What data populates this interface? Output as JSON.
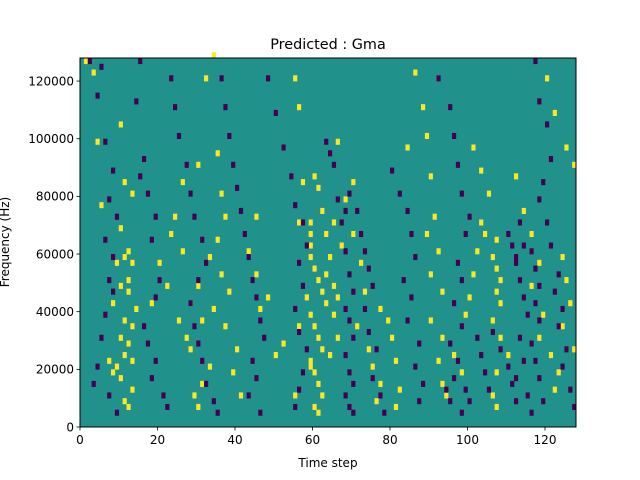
{
  "chart_data": {
    "type": "heatmap",
    "title": "Predicted : Gma",
    "xlabel": "Time step",
    "ylabel": "Frequency (Hz)",
    "xlim": [
      0,
      128
    ],
    "ylim": [
      0,
      128000
    ],
    "xticks": [
      0,
      20,
      40,
      60,
      80,
      100,
      120
    ],
    "yticks": [
      0,
      20000,
      40000,
      60000,
      80000,
      100000,
      120000
    ],
    "xtick_labels": [
      "0",
      "20",
      "40",
      "60",
      "80",
      "100",
      "120"
    ],
    "ytick_labels": [
      "0",
      "20000",
      "40000",
      "60000",
      "80000",
      "100000",
      "120000"
    ],
    "grid": false,
    "legend": "none",
    "colormap": "viridis (3 levels)",
    "colors": {
      "background": "#21918c",
      "low": "#440154",
      "high": "#fde725"
    },
    "background_level": "mid",
    "row_step_hz": 2000,
    "note_bins": "x = time step, y = frequency bin (Hz), level = low/high",
    "high_cells": [
      [
        1,
        126000
      ],
      [
        3,
        122000
      ],
      [
        10,
        104000
      ],
      [
        4,
        98000
      ],
      [
        11,
        84000
      ],
      [
        13,
        80000
      ],
      [
        5,
        76000
      ],
      [
        10,
        68000
      ],
      [
        12,
        60000
      ],
      [
        11,
        58000
      ],
      [
        9,
        56000
      ],
      [
        13,
        56000
      ],
      [
        12,
        50000
      ],
      [
        10,
        48000
      ],
      [
        12,
        46000
      ],
      [
        8,
        42000
      ],
      [
        14,
        40000
      ],
      [
        11,
        36000
      ],
      [
        13,
        34000
      ],
      [
        10,
        30000
      ],
      [
        12,
        28000
      ],
      [
        11,
        24000
      ],
      [
        13,
        22000
      ],
      [
        9,
        20000
      ],
      [
        10,
        16000
      ],
      [
        13,
        12000
      ],
      [
        11,
        8000
      ],
      [
        12,
        6000
      ],
      [
        7,
        22000
      ],
      [
        8,
        18000
      ],
      [
        20,
        56000
      ],
      [
        22,
        48000
      ],
      [
        18,
        42000
      ],
      [
        25,
        36000
      ],
      [
        27,
        30000
      ],
      [
        30,
        90000
      ],
      [
        26,
        84000
      ],
      [
        24,
        72000
      ],
      [
        23,
        66000
      ],
      [
        26,
        60000
      ],
      [
        30,
        48000
      ],
      [
        28,
        42000
      ],
      [
        31,
        36000
      ],
      [
        28,
        26000
      ],
      [
        33,
        20000
      ],
      [
        31,
        14000
      ],
      [
        29,
        10000
      ],
      [
        30,
        6000
      ],
      [
        34,
        128000
      ],
      [
        32,
        120000
      ],
      [
        35,
        94000
      ],
      [
        36,
        80000
      ],
      [
        37,
        72000
      ],
      [
        35,
        64000
      ],
      [
        33,
        58000
      ],
      [
        36,
        52000
      ],
      [
        38,
        46000
      ],
      [
        34,
        40000
      ],
      [
        37,
        34000
      ],
      [
        40,
        26000
      ],
      [
        39,
        18000
      ],
      [
        41,
        10000
      ],
      [
        45,
        72000
      ],
      [
        43,
        60000
      ],
      [
        45,
        52000
      ],
      [
        48,
        44000
      ],
      [
        46,
        40000
      ],
      [
        52,
        28000
      ],
      [
        50,
        24000
      ],
      [
        55,
        120000
      ],
      [
        56,
        110000
      ],
      [
        57,
        84000
      ],
      [
        56,
        70000
      ],
      [
        58,
        44000
      ],
      [
        56,
        34000
      ],
      [
        59,
        20000
      ],
      [
        55,
        10000
      ],
      [
        59,
        70000
      ],
      [
        59,
        66000
      ],
      [
        59,
        62000
      ],
      [
        60,
        86000
      ],
      [
        61,
        82000
      ],
      [
        62,
        74000
      ],
      [
        59,
        58000
      ],
      [
        60,
        54000
      ],
      [
        61,
        50000
      ],
      [
        62,
        46000
      ],
      [
        63,
        42000
      ],
      [
        59,
        38000
      ],
      [
        60,
        34000
      ],
      [
        61,
        30000
      ],
      [
        62,
        26000
      ],
      [
        59,
        22000
      ],
      [
        60,
        18000
      ],
      [
        61,
        14000
      ],
      [
        62,
        10000
      ],
      [
        60,
        6000
      ],
      [
        61,
        4000
      ],
      [
        63,
        66000
      ],
      [
        64,
        58000
      ],
      [
        63,
        52000
      ],
      [
        65,
        48000
      ],
      [
        66,
        44000
      ],
      [
        65,
        38000
      ],
      [
        66,
        30000
      ],
      [
        64,
        24000
      ],
      [
        66,
        98000
      ],
      [
        65,
        70000
      ],
      [
        67,
        62000
      ],
      [
        68,
        78000
      ],
      [
        70,
        84000
      ],
      [
        70,
        66000
      ],
      [
        72,
        56000
      ],
      [
        73,
        46000
      ],
      [
        71,
        34000
      ],
      [
        74,
        26000
      ],
      [
        75,
        20000
      ],
      [
        77,
        14000
      ],
      [
        76,
        8000
      ],
      [
        77,
        40000
      ],
      [
        79,
        36000
      ],
      [
        80,
        30000
      ],
      [
        81,
        22000
      ],
      [
        82,
        12000
      ],
      [
        81,
        6000
      ],
      [
        84,
        96000
      ],
      [
        86,
        122000
      ],
      [
        88,
        110000
      ],
      [
        89,
        100000
      ],
      [
        90,
        86000
      ],
      [
        91,
        72000
      ],
      [
        89,
        66000
      ],
      [
        92,
        60000
      ],
      [
        90,
        52000
      ],
      [
        93,
        46000
      ],
      [
        90,
        36000
      ],
      [
        93,
        30000
      ],
      [
        92,
        22000
      ],
      [
        93,
        14000
      ],
      [
        94,
        10000
      ],
      [
        96,
        24000
      ],
      [
        98,
        18000
      ],
      [
        99,
        38000
      ],
      [
        100,
        44000
      ],
      [
        101,
        52000
      ],
      [
        102,
        60000
      ],
      [
        104,
        66000
      ],
      [
        103,
        70000
      ],
      [
        101,
        96000
      ],
      [
        103,
        88000
      ],
      [
        105,
        80000
      ],
      [
        107,
        64000
      ],
      [
        106,
        58000
      ],
      [
        107,
        54000
      ],
      [
        108,
        50000
      ],
      [
        107,
        46000
      ],
      [
        108,
        42000
      ],
      [
        106,
        36000
      ],
      [
        108,
        30000
      ],
      [
        110,
        24000
      ],
      [
        107,
        18000
      ],
      [
        106,
        10000
      ],
      [
        107,
        6000
      ],
      [
        112,
        86000
      ],
      [
        114,
        74000
      ],
      [
        116,
        66000
      ],
      [
        118,
        56000
      ],
      [
        116,
        48000
      ],
      [
        119,
        38000
      ],
      [
        118,
        30000
      ],
      [
        121,
        24000
      ],
      [
        123,
        18000
      ],
      [
        122,
        12000
      ],
      [
        124,
        58000
      ],
      [
        125,
        50000
      ],
      [
        126,
        42000
      ],
      [
        124,
        34000
      ],
      [
        127,
        26000
      ],
      [
        120,
        120000
      ],
      [
        122,
        108000
      ],
      [
        125,
        96000
      ],
      [
        127,
        90000
      ]
    ],
    "low_cells": [
      [
        2,
        126000
      ],
      [
        5,
        124000
      ],
      [
        4,
        114000
      ],
      [
        6,
        98000
      ],
      [
        8,
        88000
      ],
      [
        7,
        78000
      ],
      [
        9,
        72000
      ],
      [
        6,
        64000
      ],
      [
        8,
        58000
      ],
      [
        7,
        50000
      ],
      [
        8,
        46000
      ],
      [
        6,
        38000
      ],
      [
        5,
        30000
      ],
      [
        4,
        20000
      ],
      [
        3,
        14000
      ],
      [
        7,
        10000
      ],
      [
        9,
        4000
      ],
      [
        15,
        126000
      ],
      [
        14,
        112000
      ],
      [
        16,
        92000
      ],
      [
        15,
        86000
      ],
      [
        17,
        80000
      ],
      [
        19,
        72000
      ],
      [
        18,
        64000
      ],
      [
        20,
        50000
      ],
      [
        19,
        44000
      ],
      [
        16,
        34000
      ],
      [
        17,
        28000
      ],
      [
        19,
        22000
      ],
      [
        18,
        16000
      ],
      [
        21,
        10000
      ],
      [
        22,
        6000
      ],
      [
        23,
        120000
      ],
      [
        24,
        110000
      ],
      [
        25,
        100000
      ],
      [
        27,
        90000
      ],
      [
        28,
        80000
      ],
      [
        29,
        72000
      ],
      [
        31,
        64000
      ],
      [
        32,
        56000
      ],
      [
        30,
        50000
      ],
      [
        28,
        42000
      ],
      [
        29,
        34000
      ],
      [
        30,
        28000
      ],
      [
        31,
        22000
      ],
      [
        32,
        14000
      ],
      [
        34,
        8000
      ],
      [
        35,
        4000
      ],
      [
        36,
        120000
      ],
      [
        37,
        110000
      ],
      [
        38,
        100000
      ],
      [
        39,
        90000
      ],
      [
        40,
        82000
      ],
      [
        41,
        74000
      ],
      [
        42,
        66000
      ],
      [
        43,
        58000
      ],
      [
        44,
        50000
      ],
      [
        45,
        44000
      ],
      [
        46,
        36000
      ],
      [
        47,
        30000
      ],
      [
        44,
        22000
      ],
      [
        45,
        16000
      ],
      [
        43,
        10000
      ],
      [
        46,
        4000
      ],
      [
        48,
        120000
      ],
      [
        50,
        108000
      ],
      [
        52,
        96000
      ],
      [
        54,
        86000
      ],
      [
        55,
        76000
      ],
      [
        57,
        70000
      ],
      [
        58,
        62000
      ],
      [
        56,
        56000
      ],
      [
        57,
        48000
      ],
      [
        55,
        40000
      ],
      [
        56,
        32000
      ],
      [
        58,
        26000
      ],
      [
        57,
        18000
      ],
      [
        56,
        12000
      ],
      [
        55,
        6000
      ],
      [
        63,
        98000
      ],
      [
        64,
        94000
      ],
      [
        65,
        90000
      ],
      [
        66,
        78000
      ],
      [
        68,
        74000
      ],
      [
        67,
        70000
      ],
      [
        69,
        80000
      ],
      [
        68,
        60000
      ],
      [
        69,
        52000
      ],
      [
        70,
        46000
      ],
      [
        68,
        40000
      ],
      [
        69,
        36000
      ],
      [
        70,
        30000
      ],
      [
        68,
        24000
      ],
      [
        69,
        18000
      ],
      [
        70,
        14000
      ],
      [
        68,
        10000
      ],
      [
        69,
        6000
      ],
      [
        70,
        4000
      ],
      [
        71,
        74000
      ],
      [
        72,
        66000
      ],
      [
        73,
        60000
      ],
      [
        74,
        54000
      ],
      [
        75,
        48000
      ],
      [
        73,
        40000
      ],
      [
        74,
        32000
      ],
      [
        76,
        26000
      ],
      [
        75,
        16000
      ],
      [
        77,
        10000
      ],
      [
        78,
        4000
      ],
      [
        80,
        88000
      ],
      [
        82,
        80000
      ],
      [
        84,
        74000
      ],
      [
        85,
        66000
      ],
      [
        86,
        58000
      ],
      [
        83,
        50000
      ],
      [
        85,
        44000
      ],
      [
        84,
        36000
      ],
      [
        87,
        28000
      ],
      [
        86,
        20000
      ],
      [
        88,
        14000
      ],
      [
        87,
        8000
      ],
      [
        92,
        120000
      ],
      [
        95,
        110000
      ],
      [
        96,
        100000
      ],
      [
        97,
        90000
      ],
      [
        98,
        80000
      ],
      [
        100,
        72000
      ],
      [
        99,
        66000
      ],
      [
        97,
        56000
      ],
      [
        98,
        50000
      ],
      [
        96,
        42000
      ],
      [
        98,
        34000
      ],
      [
        95,
        28000
      ],
      [
        97,
        22000
      ],
      [
        96,
        16000
      ],
      [
        94,
        12000
      ],
      [
        95,
        8000
      ],
      [
        99,
        12000
      ],
      [
        100,
        8000
      ],
      [
        98,
        4000
      ],
      [
        102,
        30000
      ],
      [
        103,
        24000
      ],
      [
        104,
        18000
      ],
      [
        105,
        12000
      ],
      [
        106,
        32000
      ],
      [
        108,
        26000
      ],
      [
        110,
        20000
      ],
      [
        111,
        14000
      ],
      [
        112,
        8000
      ],
      [
        113,
        70000
      ],
      [
        114,
        62000
      ],
      [
        112,
        56000
      ],
      [
        113,
        50000
      ],
      [
        114,
        44000
      ],
      [
        115,
        38000
      ],
      [
        113,
        30000
      ],
      [
        114,
        22000
      ],
      [
        112,
        16000
      ],
      [
        115,
        10000
      ],
      [
        116,
        4000
      ],
      [
        117,
        126000
      ],
      [
        118,
        112000
      ],
      [
        120,
        104000
      ],
      [
        121,
        92000
      ],
      [
        119,
        84000
      ],
      [
        118,
        78000
      ],
      [
        120,
        70000
      ],
      [
        121,
        62000
      ],
      [
        123,
        52000
      ],
      [
        122,
        46000
      ],
      [
        124,
        40000
      ],
      [
        123,
        34000
      ],
      [
        125,
        26000
      ],
      [
        124,
        20000
      ],
      [
        126,
        12000
      ],
      [
        127,
        6000
      ],
      [
        116,
        60000
      ],
      [
        117,
        54000
      ],
      [
        118,
        48000
      ],
      [
        117,
        42000
      ],
      [
        118,
        36000
      ],
      [
        116,
        28000
      ],
      [
        117,
        22000
      ],
      [
        118,
        16000
      ],
      [
        119,
        8000
      ],
      [
        110,
        66000
      ],
      [
        111,
        62000
      ],
      [
        112,
        58000
      ]
    ]
  }
}
